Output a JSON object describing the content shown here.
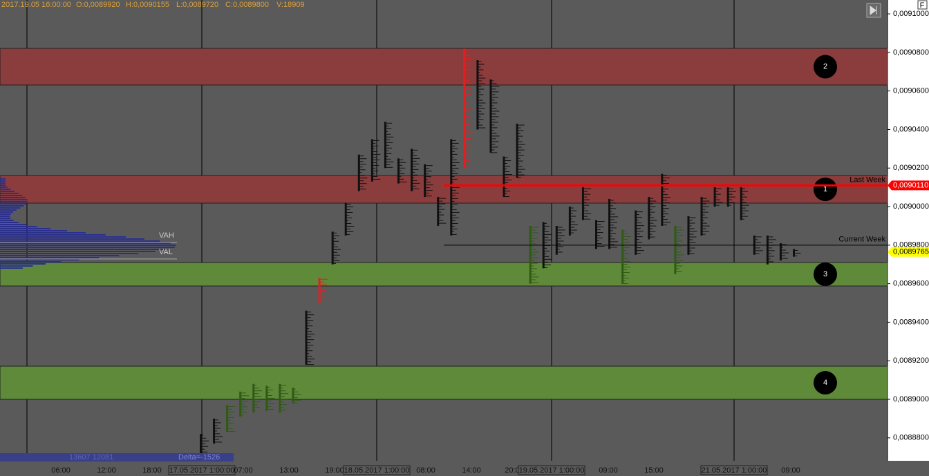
{
  "chart_data": {
    "type": "price-bars",
    "header": [
      "2017.19.05 16:00:00",
      "O:0,0089920",
      "H:0,0090155",
      "L:0,0089720",
      "C:0,0089800",
      "V:18909"
    ],
    "ylim": [
      0.0088681,
      0.0091072
    ],
    "yticks": [
      {
        "value": 0.0091,
        "label": "0,0091000"
      },
      {
        "value": 0.00908,
        "label": "0,0090800"
      },
      {
        "value": 0.00906,
        "label": "0,0090600"
      },
      {
        "value": 0.00904,
        "label": "0,0090400"
      },
      {
        "value": 0.00902,
        "label": "0,0090200"
      },
      {
        "value": 0.009,
        "label": "0,0090000"
      },
      {
        "value": 0.00898,
        "label": "0,0089800"
      },
      {
        "value": 0.00896,
        "label": "0,0089600"
      },
      {
        "value": 0.00894,
        "label": "0,0089400"
      },
      {
        "value": 0.00892,
        "label": "0,0089200"
      },
      {
        "value": 0.0089,
        "label": "0,0089000"
      },
      {
        "value": 0.00888,
        "label": "0,0088800"
      }
    ],
    "x_labels": [
      "06:00",
      "12:00",
      "18:00",
      "17.05.2017 1:00:00",
      "07:00",
      "13:00",
      "19:00",
      "18.05.2017 1:00:00",
      "08:00",
      "14:00",
      "20:00",
      "19.05.2017 1:00:00",
      "09:00",
      "15:00",
      "21.05.2017 1:00:00",
      "09:00"
    ],
    "zones": [
      {
        "label": "2",
        "low": 0.0090631,
        "high": 0.0090821,
        "color": "#8b3c3c"
      },
      {
        "label": "1",
        "low": 0.0090018,
        "high": 0.0090161,
        "color": "#8b3c3c"
      },
      {
        "label": "3",
        "low": 0.0089588,
        "high": 0.008971,
        "color": "#5f8a3a"
      },
      {
        "label": "4",
        "low": 0.0089,
        "high": 0.0089172,
        "color": "#5f8a3a"
      }
    ],
    "levels": [
      {
        "name": "Last Week",
        "value": 0.009011,
        "color": "#ff0000",
        "tag": "0,0090110"
      },
      {
        "name": "Current Week",
        "value": 0.00898,
        "color": "#000000",
        "tag": "0,0089765",
        "tag_value": 0.0089765
      }
    ],
    "value_area": {
      "vah_label": "VAH",
      "vah": 0.0089814,
      "val_label": "VAL",
      "val": 0.0089728
    },
    "low": [
      0.008868,
      0.008877,
      0.008883,
      0.008891,
      0.008893,
      0.008894,
      0.008893,
      0.008898,
      0.008918,
      0.00895,
      0.00897,
      0.008985,
      0.009008,
      0.009013,
      0.00902,
      0.009012,
      0.009008,
      0.009005,
      0.00899,
      0.008985,
      0.00902,
      0.00904,
      0.009028,
      0.009005,
      0.009015,
      0.00896,
      0.008968,
      0.008975,
      0.008985,
      0.008993,
      0.008978,
      0.008978,
      0.00896,
      0.008975,
      0.008983,
      0.00899,
      0.008965,
      0.008975,
      0.008985,
      0.009,
      0.009,
      0.008993,
      0.008975,
      0.00897,
      0.008972,
      0.008974
    ],
    "high": [
      0.008882,
      0.00889,
      0.008897,
      0.008904,
      0.008908,
      0.008907,
      0.008908,
      0.008906,
      0.008946,
      0.008963,
      0.008987,
      0.009002,
      0.009027,
      0.009035,
      0.009044,
      0.009025,
      0.00903,
      0.009022,
      0.009005,
      0.009035,
      0.009082,
      0.009076,
      0.009066,
      0.009026,
      0.009043,
      0.00899,
      0.008992,
      0.00899,
      0.009,
      0.00901,
      0.008993,
      0.009004,
      0.008988,
      0.008998,
      0.009005,
      0.009017,
      0.00899,
      0.008995,
      0.009005,
      0.00901,
      0.00901,
      0.00901,
      0.008985,
      0.008985,
      0.008981,
      0.008978
    ],
    "bar_colors": [
      "#111",
      "#111",
      "#2f5a14",
      "#2f5a14",
      "#2f5a14",
      "#2f5a14",
      "#2f5a14",
      "#2f5a14",
      "#111",
      "#e02020",
      "#111",
      "#111",
      "#111",
      "#111",
      "#111",
      "#111",
      "#111",
      "#111",
      "#111",
      "#111",
      "#e02020",
      "#111",
      "#111",
      "#111",
      "#111",
      "#2f5a14",
      "#111",
      "#111",
      "#111",
      "#111",
      "#111",
      "#111",
      "#2f5a14",
      "#111",
      "#111",
      "#111",
      "#2f5a14",
      "#111",
      "#111",
      "#111",
      "#111",
      "#111",
      "#111",
      "#111",
      "#111",
      "#111"
    ],
    "footer": [
      "13607 12081",
      "Delta=-1526"
    ],
    "button": "F"
  }
}
